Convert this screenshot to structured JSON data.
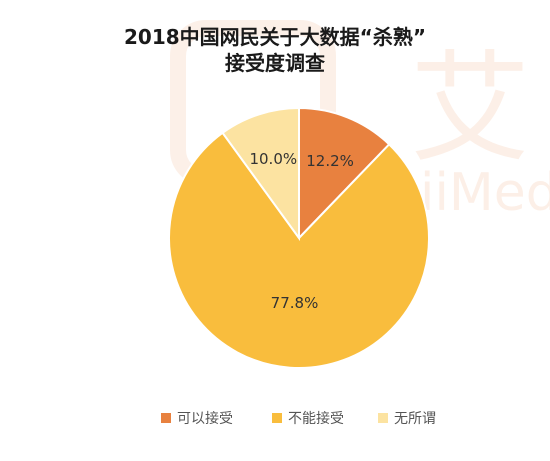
{
  "chart_data": {
    "type": "pie",
    "title_lines": [
      "2018中国网民关于大数据“杀熟”",
      "接受度调查"
    ],
    "slices": [
      {
        "label": "可以接受",
        "value": 12.2,
        "value_label": "12.2%",
        "color": "#E8813F"
      },
      {
        "label": "不能接受",
        "value": 77.8,
        "value_label": "77.8%",
        "color": "#F9BD3D"
      },
      {
        "label": "无所谓",
        "value": 10.0,
        "value_label": "10.0%",
        "color": "#FCE3A1"
      }
    ],
    "legend_placement": "bottom"
  },
  "watermark": {
    "glyphs": "艾",
    "text": "iiMed"
  }
}
